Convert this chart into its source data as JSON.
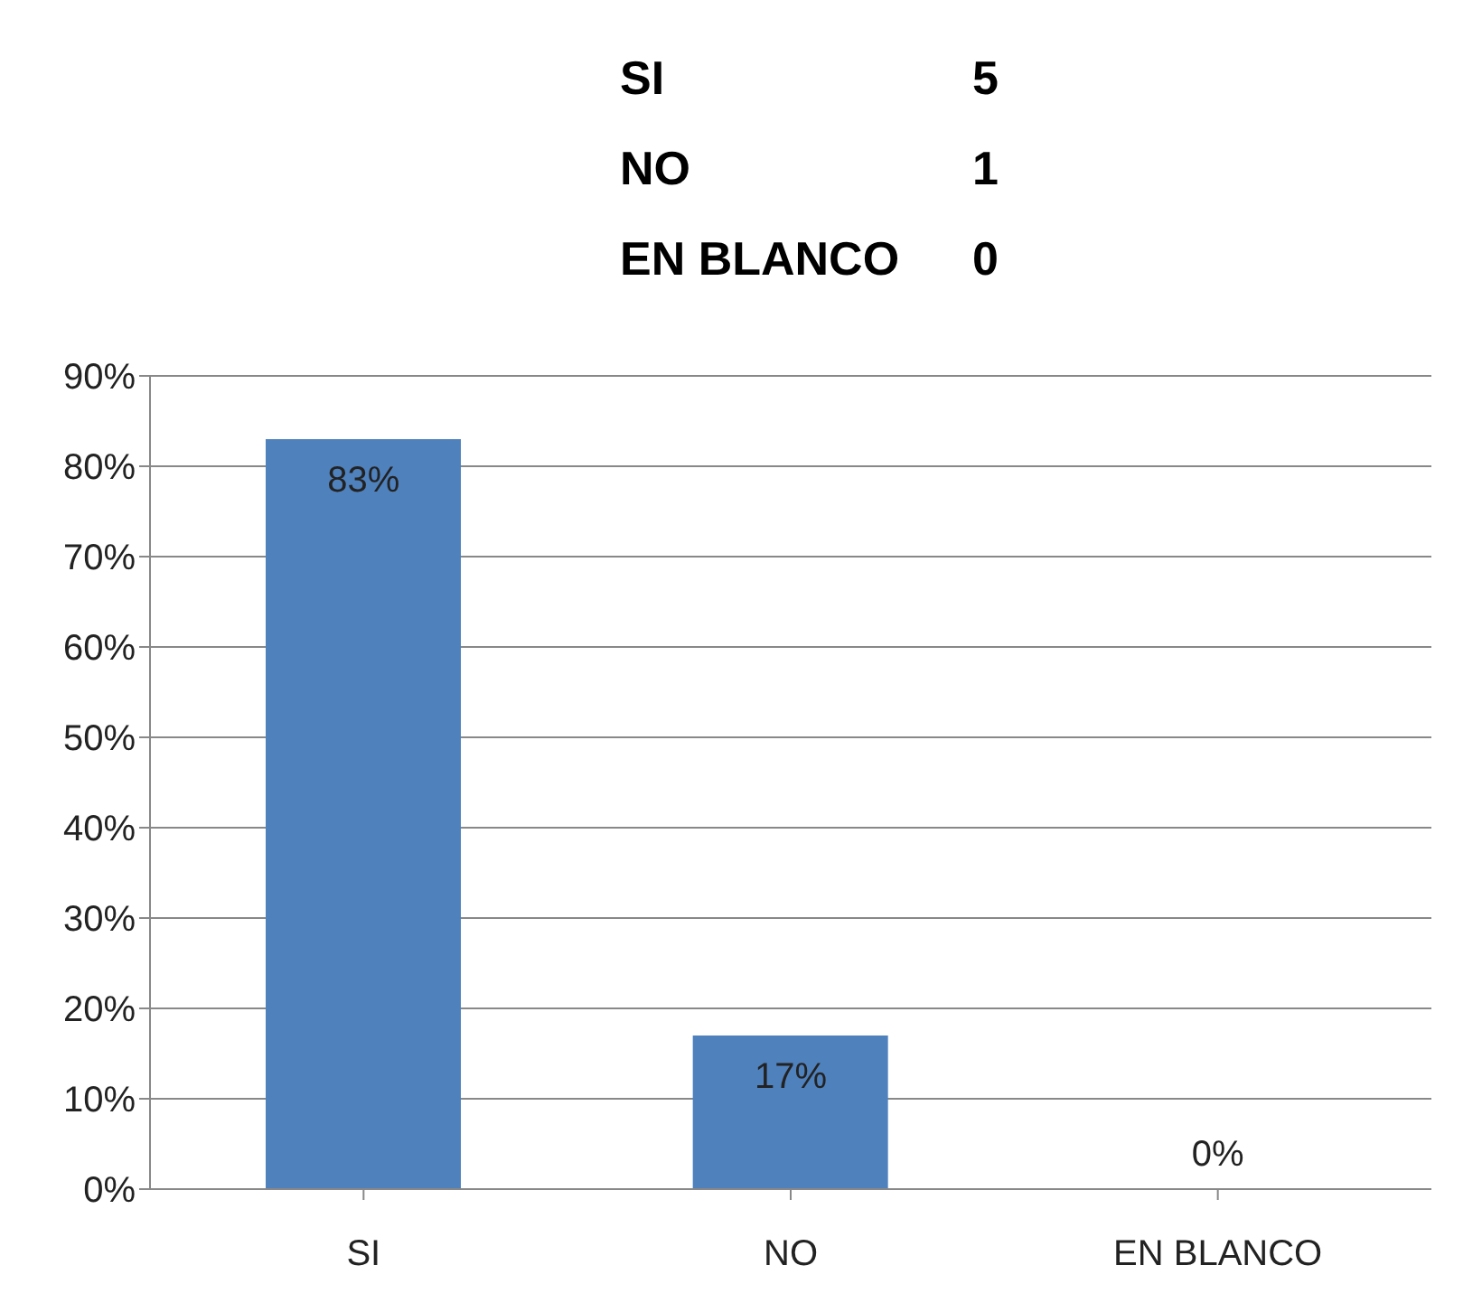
{
  "chart_data": {
    "type": "bar",
    "annotations": [
      "SI",
      "5",
      "NO",
      "1",
      "EN BLANCO",
      "0"
    ],
    "categories": [
      "SI",
      "NO",
      "EN BLANCO"
    ],
    "values": [
      83,
      17,
      0
    ],
    "value_labels": [
      "83%",
      "17%",
      "0%"
    ],
    "color": "#4f81bd",
    "ylim": [
      0,
      90
    ],
    "yticks": [
      {
        "value": 0,
        "label": "0%"
      },
      {
        "value": 10,
        "label": "10%"
      },
      {
        "value": 20,
        "label": "20%"
      },
      {
        "value": 30,
        "label": "30%"
      },
      {
        "value": 40,
        "label": "40%"
      },
      {
        "value": 50,
        "label": "50%"
      },
      {
        "value": 60,
        "label": "60%"
      },
      {
        "value": 70,
        "label": "70%"
      },
      {
        "value": 80,
        "label": "80%"
      },
      {
        "value": 90,
        "label": "90%"
      }
    ],
    "grid": "y"
  }
}
